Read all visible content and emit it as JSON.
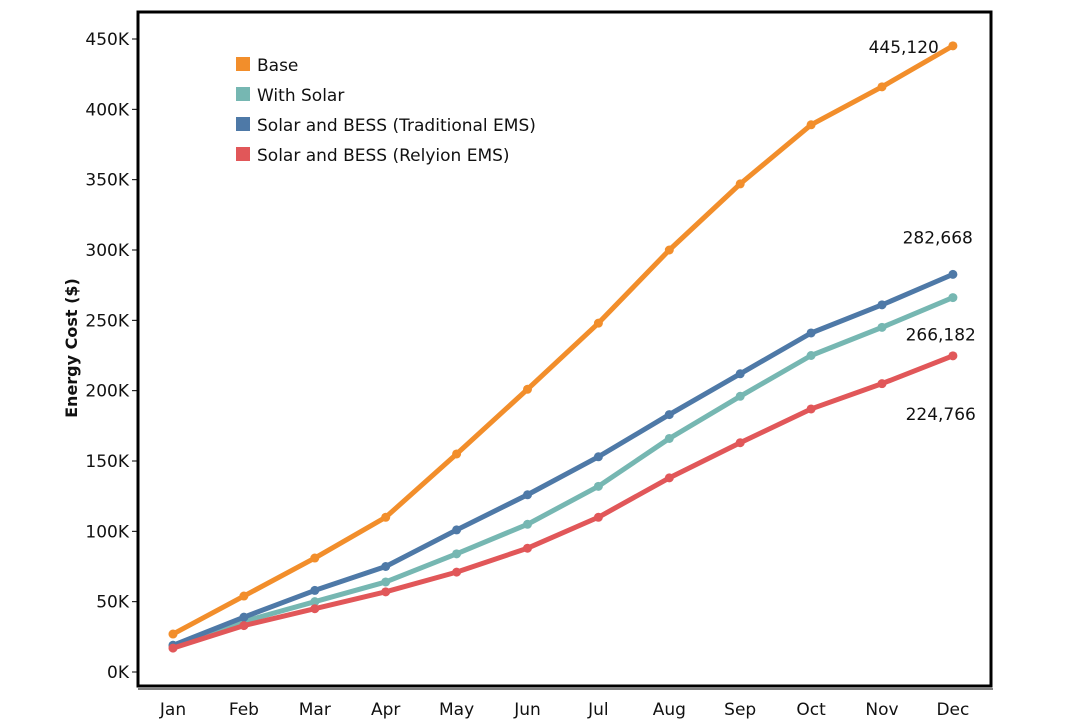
{
  "chart_data": {
    "type": "line",
    "title": "",
    "xlabel": "",
    "ylabel": "Energy Cost ($)",
    "ylim": [
      0,
      450000
    ],
    "yticks": [
      0,
      50000,
      100000,
      150000,
      200000,
      250000,
      300000,
      350000,
      400000,
      450000
    ],
    "ytick_labels": [
      "0K",
      "50K",
      "100K",
      "150K",
      "200K",
      "250K",
      "300K",
      "350K",
      "400K",
      "450K"
    ],
    "categories": [
      "Jan",
      "Feb",
      "Mar",
      "Apr",
      "May",
      "Jun",
      "Jul",
      "Aug",
      "Sep",
      "Oct",
      "Nov",
      "Dec"
    ],
    "grid": false,
    "legend_position": "top-left",
    "series": [
      {
        "name": "Base",
        "color": "#f28e2b",
        "values": [
          27000,
          54000,
          81000,
          110000,
          155000,
          201000,
          248000,
          300000,
          347000,
          389000,
          416000,
          445120
        ]
      },
      {
        "name": "With Solar",
        "color": "#76b7b2",
        "values": [
          19000,
          36000,
          50000,
          64000,
          84000,
          105000,
          132000,
          166000,
          196000,
          225000,
          245000,
          266182
        ]
      },
      {
        "name": "Solar and BESS (Traditional EMS)",
        "color": "#4e79a7",
        "values": [
          19000,
          39000,
          58000,
          75000,
          101000,
          126000,
          153000,
          183000,
          212000,
          241000,
          261000,
          282668
        ]
      },
      {
        "name": "Solar and BESS (Relyion EMS)",
        "color": "#e15759",
        "values": [
          17000,
          33000,
          45000,
          57000,
          71000,
          88000,
          110000,
          138000,
          163000,
          187000,
          205000,
          224766
        ]
      }
    ],
    "annotations": [
      {
        "text": "445,120",
        "series": "Base",
        "category": "Dec"
      },
      {
        "text": "282,668",
        "series": "Solar and BESS (Traditional EMS)",
        "category": "Dec"
      },
      {
        "text": "266,182",
        "series": "With Solar",
        "category": "Dec"
      },
      {
        "text": "224,766",
        "series": "Solar and BESS (Relyion EMS)",
        "category": "Dec"
      }
    ]
  }
}
